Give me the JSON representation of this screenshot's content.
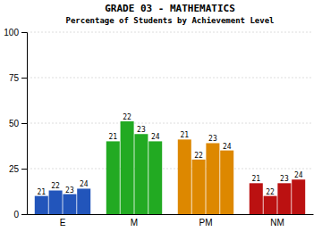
{
  "chart_data": {
    "type": "bar",
    "title": "GRADE 03 - MATHEMATICS",
    "subtitle": "Percentage of Students by Achievement Level",
    "categories": [
      "E",
      "M",
      "PM",
      "NM"
    ],
    "series": [
      {
        "name": "21",
        "values": [
          10,
          40,
          41,
          17
        ],
        "colors": [
          "#2255bb",
          "#22aa22",
          "#dd8800",
          "#bb1111"
        ]
      },
      {
        "name": "22",
        "values": [
          13,
          51,
          30,
          10
        ],
        "colors": [
          "#2255bb",
          "#22aa22",
          "#dd8800",
          "#bb1111"
        ]
      },
      {
        "name": "23",
        "values": [
          11,
          44,
          39,
          17
        ],
        "colors": [
          "#2255bb",
          "#22aa22",
          "#dd8800",
          "#bb1111"
        ]
      },
      {
        "name": "24",
        "values": [
          14,
          40,
          35,
          19
        ],
        "colors": [
          "#2255bb",
          "#22aa22",
          "#dd8800",
          "#bb1111"
        ]
      }
    ],
    "ylim": [
      0,
      100
    ],
    "yticks": [
      0,
      25,
      50,
      75,
      100
    ],
    "grid": true
  }
}
